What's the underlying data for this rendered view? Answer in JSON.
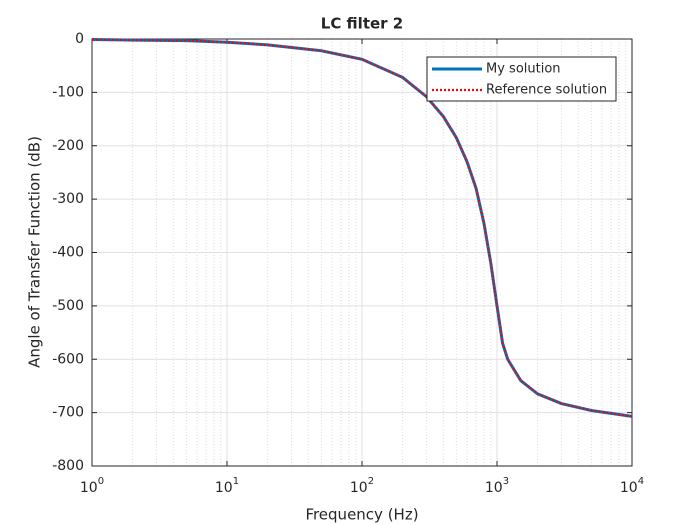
{
  "chart_data": {
    "type": "line",
    "title": "LC filter 2",
    "xlabel": "Frequency (Hz)",
    "ylabel": "Angle of Transfer Function (dB)",
    "x": [
      1,
      2,
      5,
      10,
      20,
      50,
      100,
      200,
      300,
      400,
      500,
      600,
      700,
      800,
      900,
      1000,
      1100,
      1200,
      1500,
      2000,
      3000,
      5000,
      10000
    ],
    "series": [
      {
        "name": "My solution",
        "color": "#0072bd",
        "values": [
          -1,
          -2,
          -3,
          -6,
          -11,
          -22,
          -38,
          -72,
          -108,
          -145,
          -185,
          -230,
          -280,
          -345,
          -420,
          -500,
          -570,
          -600,
          -640,
          -665,
          -683,
          -696,
          -707
        ]
      },
      {
        "name": "Reference solution",
        "color": "#ff0000",
        "values": [
          -1,
          -2,
          -3,
          -6,
          -11,
          -22,
          -38,
          -72,
          -108,
          -145,
          -185,
          -230,
          -280,
          -345,
          -420,
          -500,
          -570,
          -600,
          -640,
          -665,
          -683,
          -696,
          -707
        ]
      }
    ],
    "xscale": "log",
    "xlim": [
      1,
      10000
    ],
    "xticks": [
      {
        "value": 1,
        "label": "10",
        "exponent": "0"
      },
      {
        "value": 10,
        "label": "10",
        "exponent": "1"
      },
      {
        "value": 100,
        "label": "10",
        "exponent": "2"
      },
      {
        "value": 1000,
        "label": "10",
        "exponent": "3"
      },
      {
        "value": 10000,
        "label": "10",
        "exponent": "4"
      }
    ],
    "ylim": [
      -800,
      0
    ],
    "yticks": [
      -800,
      -700,
      -600,
      -500,
      -400,
      -300,
      -200,
      -100,
      0
    ],
    "grid": true,
    "minor_grid": true,
    "legend": "northeast"
  }
}
